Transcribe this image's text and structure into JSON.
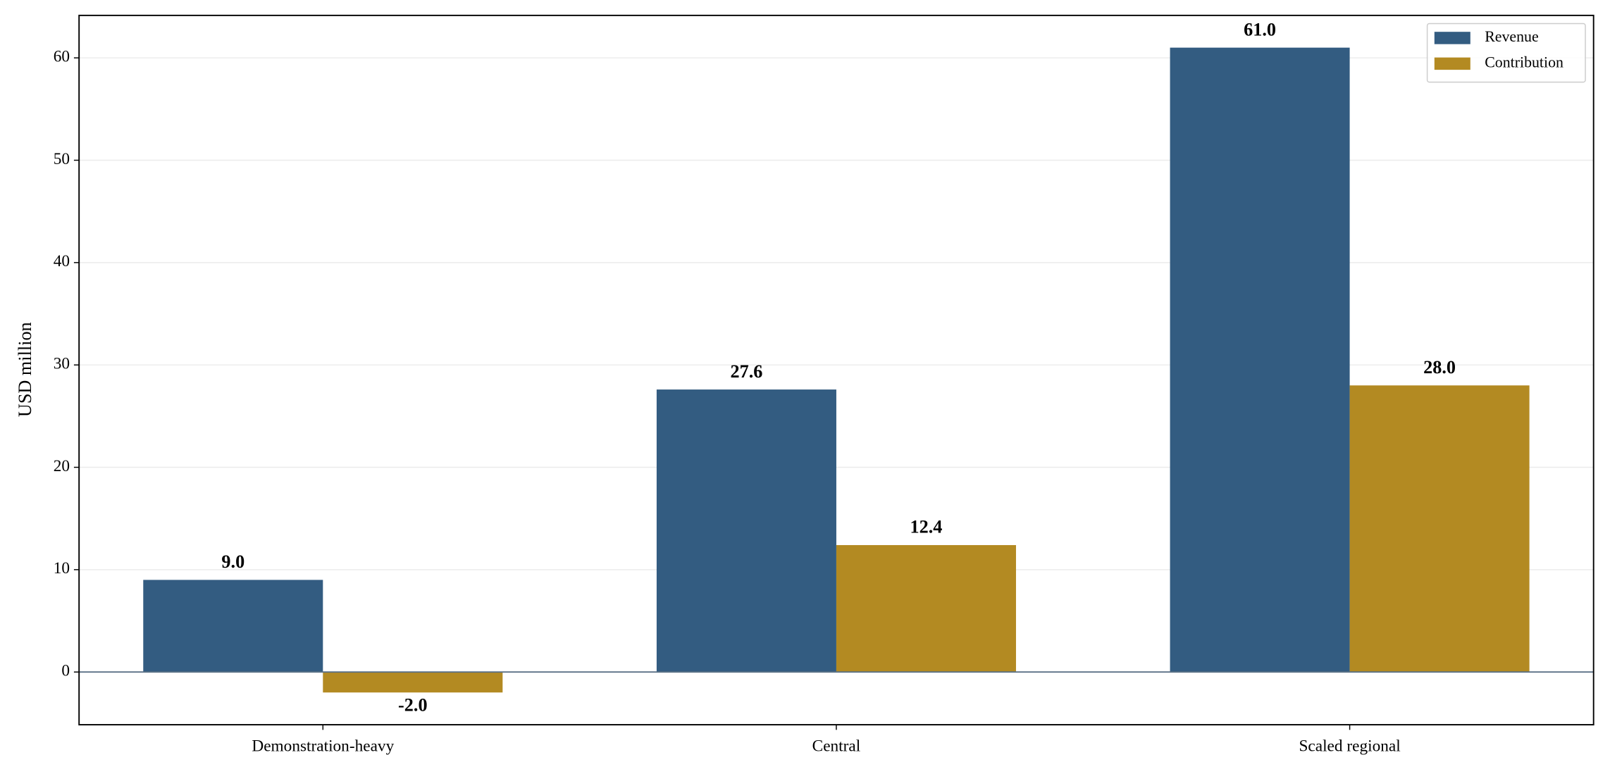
{
  "chart_data": {
    "type": "bar",
    "y_label": "USD million",
    "categories": [
      "Demonstration-heavy",
      "Central",
      "Scaled regional"
    ],
    "series": [
      {
        "name": "Revenue",
        "color": "#335c81",
        "values": [
          9.0,
          27.6,
          61.0
        ],
        "value_labels": [
          "9.0",
          "27.6",
          "61.0"
        ]
      },
      {
        "name": "Contribution",
        "color": "#b38a22",
        "values": [
          -2.0,
          12.4,
          28.0
        ],
        "value_labels": [
          "-2.0",
          "12.4",
          "28.0"
        ]
      }
    ],
    "ylim": [
      -5.15,
      64.15
    ],
    "yticks": [
      0,
      10,
      20,
      30,
      40,
      50,
      60
    ],
    "grid": true,
    "legend": "upper-right"
  }
}
